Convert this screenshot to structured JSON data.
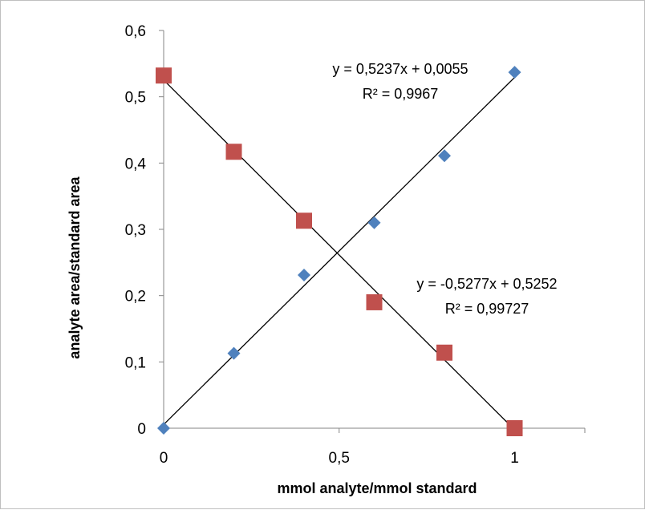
{
  "chart_data": {
    "type": "scatter",
    "title": "",
    "xlabel": "mmol analyte/mmol standard",
    "ylabel": "analyte area/standard area",
    "xlim": [
      0,
      1.2
    ],
    "ylim": [
      0,
      0.6
    ],
    "x_ticks": [
      "0",
      "0,5",
      "1"
    ],
    "y_ticks": [
      "0",
      "0,1",
      "0,2",
      "0,3",
      "0,4",
      "0,5",
      "0,6"
    ],
    "grid": false,
    "legend": "none",
    "series": [
      {
        "marker": "diamond",
        "color": "#4f81bd",
        "x": [
          0,
          0.2,
          0.4,
          0.6,
          0.8,
          1.0
        ],
        "y": [
          0.0,
          0.113,
          0.231,
          0.31,
          0.411,
          0.537
        ],
        "trendline": {
          "slope": 0.5237,
          "intercept": 0.0055,
          "equation": "y = 0,5237x + 0,0055",
          "r2": "R² = 0,9967"
        }
      },
      {
        "marker": "square",
        "color": "#c0504d",
        "x": [
          0,
          0.2,
          0.4,
          0.6,
          0.8,
          1.0
        ],
        "y": [
          0.532,
          0.417,
          0.313,
          0.19,
          0.114,
          0.0
        ],
        "trendline": {
          "slope": -0.5277,
          "intercept": 0.5252,
          "equation": "y = -0,5277x + 0,5252",
          "r2": "R² = 0,99727"
        }
      }
    ]
  }
}
